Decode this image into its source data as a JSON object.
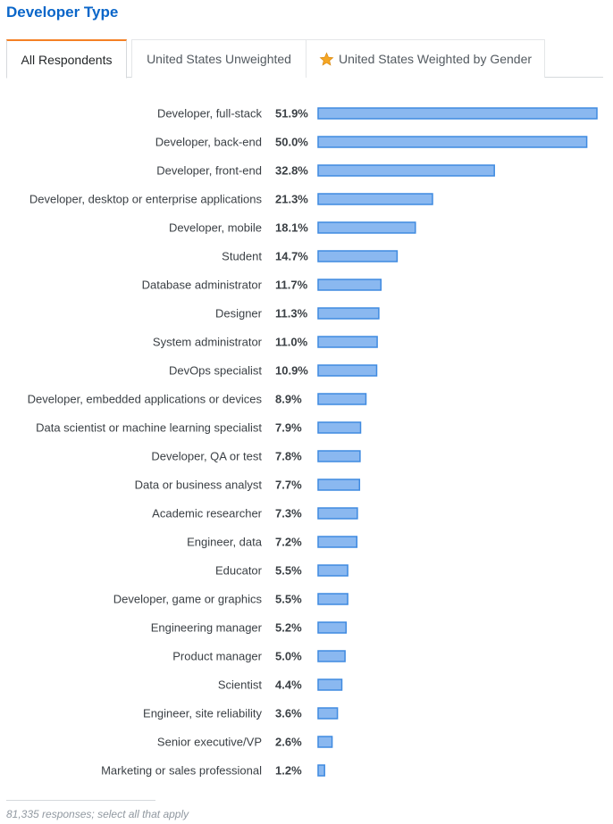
{
  "section": {
    "title": "Developer Type"
  },
  "tabs": [
    {
      "label": "All Respondents",
      "active": true
    },
    {
      "label": "United States Unweighted",
      "active": false
    },
    {
      "label": "United States Weighted by Gender",
      "active": false,
      "icon": "star-icon"
    }
  ],
  "colors": {
    "title": "#0a66c9",
    "active_tab_accent": "#f48024",
    "bar_fill": "#8ab8f0",
    "bar_stroke": "#3f8ae0",
    "star": "#f5a623"
  },
  "chart_data": {
    "type": "bar",
    "orientation": "horizontal",
    "categories": [
      "Developer, full-stack",
      "Developer, back-end",
      "Developer, front-end",
      "Developer, desktop or enterprise applications",
      "Developer, mobile",
      "Student",
      "Database administrator",
      "Designer",
      "System administrator",
      "DevOps specialist",
      "Developer, embedded applications or devices",
      "Data scientist or machine learning specialist",
      "Developer, QA or test",
      "Data or business analyst",
      "Academic researcher",
      "Engineer, data",
      "Educator",
      "Developer, game or graphics",
      "Engineering manager",
      "Product manager",
      "Scientist",
      "Engineer, site reliability",
      "Senior executive/VP",
      "Marketing or sales professional"
    ],
    "values": [
      51.9,
      50.0,
      32.8,
      21.3,
      18.1,
      14.7,
      11.7,
      11.3,
      11.0,
      10.9,
      8.9,
      7.9,
      7.8,
      7.7,
      7.3,
      7.2,
      5.5,
      5.5,
      5.2,
      5.0,
      4.4,
      3.6,
      2.6,
      1.2
    ],
    "value_labels": [
      "51.9%",
      "50.0%",
      "32.8%",
      "21.3%",
      "18.1%",
      "14.7%",
      "11.7%",
      "11.3%",
      "11.0%",
      "10.9%",
      "8.9%",
      "7.9%",
      "7.8%",
      "7.7%",
      "7.3%",
      "7.2%",
      "5.5%",
      "5.5%",
      "5.2%",
      "5.0%",
      "4.4%",
      "3.6%",
      "2.6%",
      "1.2%"
    ],
    "unit": "%",
    "grid": false,
    "legend": "none"
  },
  "footnote": "81,335 responses; select all that apply"
}
